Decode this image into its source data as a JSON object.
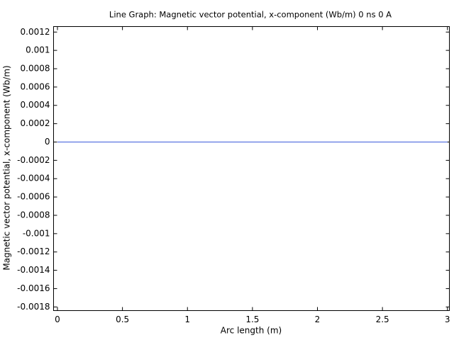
{
  "chart_data": {
    "type": "line",
    "title": "Line Graph: Magnetic vector potential, x-component (Wb/m) 0 ns  0 A",
    "x_label": "Arc length (m)",
    "y_label": "Magnetic vector potential, x-component (Wb/m)",
    "x": [
      0,
      3
    ],
    "values": [
      0,
      0
    ],
    "color": "#3b5bdb",
    "xlim": [
      -0.03,
      3.015
    ],
    "ylim": [
      -0.00184,
      0.00126
    ],
    "xticks": [
      0,
      0.5,
      1,
      1.5,
      2,
      2.5,
      3
    ],
    "yticks": [
      0.0012,
      0.001,
      0.0008,
      0.0006,
      0.0004,
      0.0002,
      0,
      -0.0002,
      -0.0004,
      -0.0006,
      -0.0008,
      -0.001,
      -0.0012,
      -0.0014,
      -0.0016,
      -0.0018
    ],
    "grid": false
  }
}
